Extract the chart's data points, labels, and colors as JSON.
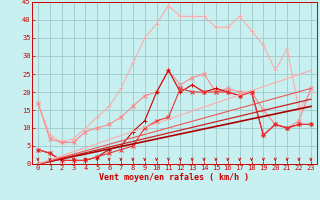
{
  "title": "",
  "xlabel": "Vent moyen/en rafales ( km/h )",
  "ylabel": "",
  "xlim": [
    -0.5,
    23.5
  ],
  "ylim": [
    0,
    45
  ],
  "yticks": [
    0,
    5,
    10,
    15,
    20,
    25,
    30,
    35,
    40,
    45
  ],
  "xticks": [
    0,
    1,
    2,
    3,
    4,
    5,
    6,
    7,
    8,
    9,
    10,
    11,
    12,
    13,
    14,
    15,
    16,
    17,
    18,
    19,
    20,
    21,
    22,
    23
  ],
  "background_color": "#c8f0f0",
  "grid_color": "#a0c8c8",
  "lines": [
    {
      "x": [
        0,
        1,
        2,
        3,
        4,
        5,
        6,
        7,
        8,
        9,
        10,
        11,
        12,
        13,
        14,
        15,
        16,
        17,
        18,
        19,
        20,
        21,
        22,
        23
      ],
      "y": [
        17,
        8,
        6,
        7,
        10,
        13,
        16,
        21,
        28,
        35,
        39,
        44,
        41,
        41,
        41,
        38,
        38,
        41,
        37,
        33,
        26,
        32,
        15,
        20
      ],
      "color": "#ffaaaa",
      "linewidth": 0.8,
      "marker": "+",
      "markersize": 3
    },
    {
      "x": [
        0,
        1,
        2,
        3,
        4,
        5,
        6,
        7,
        8,
        9,
        10,
        11,
        12,
        13,
        14,
        15,
        16,
        17,
        18,
        19,
        20,
        21,
        22,
        23
      ],
      "y": [
        17,
        7,
        6,
        6,
        9,
        10,
        11,
        13,
        16,
        19,
        20,
        26,
        22,
        24,
        25,
        20,
        21,
        20,
        20,
        15,
        11,
        10,
        12,
        21
      ],
      "color": "#ff8888",
      "linewidth": 0.8,
      "marker": "x",
      "markersize": 3
    },
    {
      "x": [
        0,
        1,
        2,
        3,
        4,
        5,
        6,
        7,
        8,
        9,
        10,
        11,
        12,
        13,
        14,
        15,
        16,
        17,
        18,
        19,
        20,
        21,
        22,
        23
      ],
      "y": [
        4,
        3,
        1,
        1,
        1,
        2,
        4,
        5,
        9,
        12,
        20,
        26,
        20,
        22,
        20,
        21,
        20,
        19,
        20,
        8,
        11,
        10,
        11,
        11
      ],
      "color": "#cc0000",
      "linewidth": 0.8,
      "marker": "+",
      "markersize": 3
    },
    {
      "x": [
        0,
        1,
        2,
        3,
        4,
        5,
        6,
        7,
        8,
        9,
        10,
        11,
        12,
        13,
        14,
        15,
        16,
        17,
        18,
        19,
        20,
        21,
        22,
        23
      ],
      "y": [
        4,
        3,
        1,
        1,
        1,
        2,
        3,
        4,
        5,
        10,
        12,
        13,
        21,
        20,
        20,
        20,
        20,
        19,
        20,
        8,
        11,
        10,
        11,
        11
      ],
      "color": "#ee3333",
      "linewidth": 0.8,
      "marker": "x",
      "markersize": 2.5
    },
    {
      "x": [
        0,
        23
      ],
      "y": [
        0,
        16
      ],
      "color": "#aa0000",
      "linewidth": 1.2,
      "marker": null,
      "markersize": 0
    },
    {
      "x": [
        0,
        23
      ],
      "y": [
        0,
        18
      ],
      "color": "#cc2222",
      "linewidth": 0.9,
      "marker": null,
      "markersize": 0
    },
    {
      "x": [
        0,
        23
      ],
      "y": [
        0,
        21
      ],
      "color": "#ee5555",
      "linewidth": 0.8,
      "marker": null,
      "markersize": 0
    },
    {
      "x": [
        0,
        23
      ],
      "y": [
        0,
        26
      ],
      "color": "#ffaaaa",
      "linewidth": 0.8,
      "marker": null,
      "markersize": 0
    }
  ],
  "arrow_color": "#cc0000",
  "xlabel_fontsize": 6,
  "tick_fontsize": 5,
  "tick_color": "#cc0000"
}
